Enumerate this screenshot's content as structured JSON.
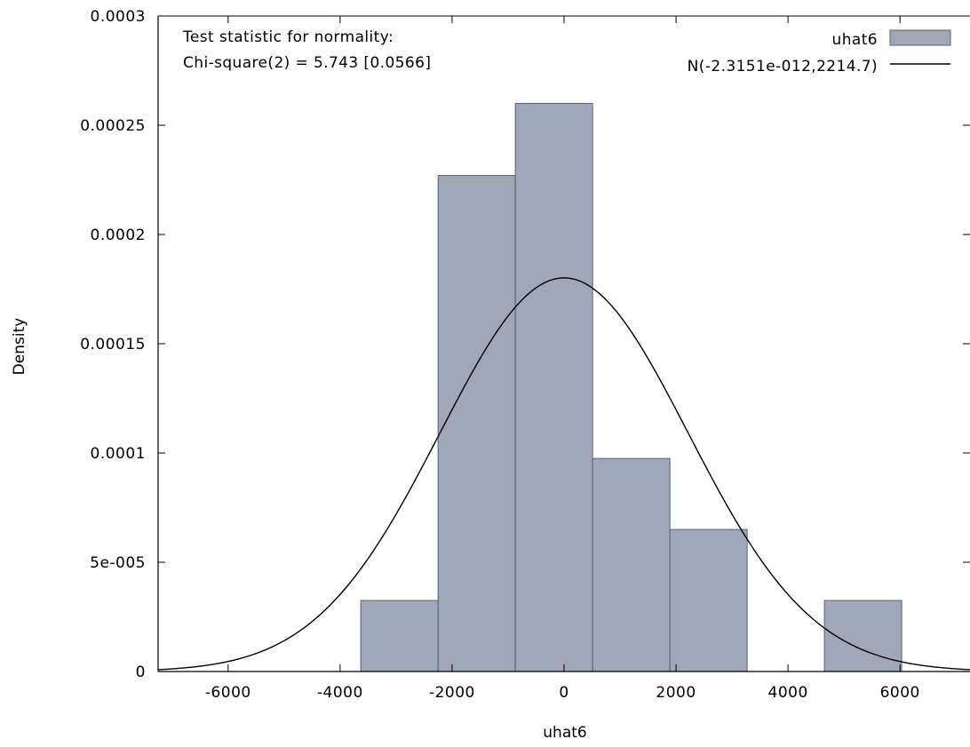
{
  "chart_data": {
    "type": "histogram",
    "xlabel": "uhat6",
    "ylabel": "Density",
    "xlim": [
      -7250,
      7250
    ],
    "ylim": [
      0,
      0.0003
    ],
    "x_ticks": [
      -6000,
      -4000,
      -2000,
      0,
      2000,
      4000,
      6000
    ],
    "x_tick_labels": [
      "-6000",
      "-4000",
      "-2000",
      "0",
      "2000",
      "4000",
      "6000"
    ],
    "y_ticks": [
      0,
      5e-05,
      0.0001,
      0.00015,
      0.0002,
      0.00025,
      0.0003
    ],
    "y_tick_labels": [
      "0",
      "5e-005",
      "0.0001",
      "0.00015",
      "0.0002",
      "0.00025",
      "0.0003"
    ],
    "annotation": [
      "Test statistic for normality:",
      "Chi-square(2) = 5.743 [0.0566]"
    ],
    "legend_position": "top-right",
    "colors": {
      "bar_fill": "#a0a7b6",
      "bar_edge": "#56607a",
      "curve": "#000000"
    },
    "series": [
      {
        "name": "uhat6",
        "type": "bar",
        "bins": [
          {
            "x0": -3630,
            "x1": -2250,
            "value": 3.25e-05
          },
          {
            "x0": -2250,
            "x1": -870,
            "value": 0.000227
          },
          {
            "x0": -870,
            "x1": 510,
            "value": 0.00026
          },
          {
            "x0": 510,
            "x1": 1890,
            "value": 9.75e-05
          },
          {
            "x0": 1890,
            "x1": 3270,
            "value": 6.5e-05
          },
          {
            "x0": 4650,
            "x1": 6030,
            "value": 3.25e-05
          }
        ]
      },
      {
        "name": "N(-2.3151e-012,2214.7)",
        "type": "line",
        "mean": -2.3151e-12,
        "sd": 2214.7
      }
    ]
  }
}
